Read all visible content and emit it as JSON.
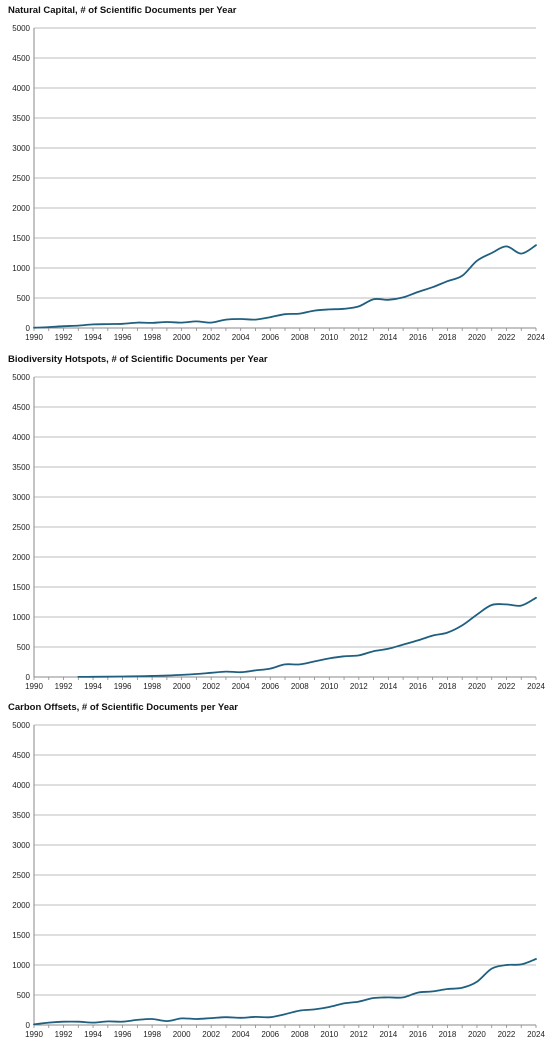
{
  "chart_data": [
    {
      "type": "line",
      "title": "Natural Capital, # of Scientific Documents per Year",
      "xlabel": "",
      "ylabel": "",
      "xlim": [
        1990,
        2024
      ],
      "ylim": [
        0,
        5000
      ],
      "x_ticks": [
        "1990",
        "1992",
        "1994",
        "1996",
        "1998",
        "2000",
        "2002",
        "2004",
        "2006",
        "2008",
        "2010",
        "2012",
        "2014",
        "2016",
        "2018",
        "2020",
        "2022",
        "2024"
      ],
      "y_ticks": [
        "0",
        "500",
        "1000",
        "1500",
        "2000",
        "2500",
        "3000",
        "3500",
        "4000",
        "4500",
        "5000"
      ],
      "grid": true,
      "line_color": "#1f5f7f",
      "series": [
        {
          "x": [
            1990,
            1991,
            1992,
            1993,
            1994,
            1995,
            1996,
            1997,
            1998,
            1999,
            2000,
            2001,
            2002,
            2003,
            2004,
            2005,
            2006,
            2007,
            2008,
            2009,
            2010,
            2011,
            2012,
            2013,
            2014,
            2015,
            2016,
            2017,
            2018,
            2019,
            2020,
            2021,
            2022,
            2023,
            2024
          ],
          "values": [
            5,
            15,
            30,
            40,
            60,
            65,
            70,
            90,
            85,
            100,
            90,
            110,
            90,
            140,
            150,
            140,
            180,
            230,
            240,
            290,
            310,
            320,
            360,
            480,
            470,
            510,
            600,
            680,
            780,
            870,
            1120,
            1250,
            1360,
            1240,
            1380
          ]
        }
      ]
    },
    {
      "type": "line",
      "title": "Biodiversity Hotspots, # of Scientific Documents per Year",
      "xlabel": "",
      "ylabel": "",
      "xlim": [
        1990,
        2024
      ],
      "ylim": [
        0,
        5000
      ],
      "x_ticks": [
        "1990",
        "1992",
        "1994",
        "1996",
        "1998",
        "2000",
        "2002",
        "2004",
        "2006",
        "2008",
        "2010",
        "2012",
        "2014",
        "2016",
        "2018",
        "2020",
        "2022",
        "2024"
      ],
      "y_ticks": [
        "0",
        "500",
        "1000",
        "1500",
        "2000",
        "2500",
        "3000",
        "3500",
        "4000",
        "4500",
        "5000"
      ],
      "grid": true,
      "line_color": "#1f5f7f",
      "series": [
        {
          "x": [
            1993,
            1994,
            1995,
            1996,
            1997,
            1998,
            1999,
            2000,
            2001,
            2002,
            2003,
            2004,
            2005,
            2006,
            2007,
            2008,
            2009,
            2010,
            2011,
            2012,
            2013,
            2014,
            2015,
            2016,
            2017,
            2018,
            2019,
            2020,
            2021,
            2022,
            2023,
            2024
          ],
          "values": [
            2,
            3,
            5,
            8,
            12,
            18,
            25,
            35,
            50,
            70,
            90,
            80,
            110,
            140,
            210,
            210,
            260,
            310,
            345,
            360,
            430,
            470,
            540,
            610,
            690,
            740,
            860,
            1040,
            1200,
            1210,
            1190,
            1320
          ]
        }
      ]
    },
    {
      "type": "line",
      "title": "Carbon Offsets, # of Scientific Documents per Year",
      "xlabel": "",
      "ylabel": "",
      "xlim": [
        1990,
        2024
      ],
      "ylim": [
        0,
        5000
      ],
      "x_ticks": [
        "1990",
        "1992",
        "1994",
        "1996",
        "1998",
        "2000",
        "2002",
        "2004",
        "2006",
        "2008",
        "2010",
        "2012",
        "2014",
        "2016",
        "2018",
        "2020",
        "2022",
        "2024"
      ],
      "y_ticks": [
        "0",
        "500",
        "1000",
        "1500",
        "2000",
        "2500",
        "3000",
        "3500",
        "4000",
        "4500",
        "5000"
      ],
      "grid": true,
      "line_color": "#1f5f7f",
      "series": [
        {
          "x": [
            1990,
            1991,
            1992,
            1993,
            1994,
            1995,
            1996,
            1997,
            1998,
            1999,
            2000,
            2001,
            2002,
            2003,
            2004,
            2005,
            2006,
            2007,
            2008,
            2009,
            2010,
            2011,
            2012,
            2013,
            2014,
            2015,
            2016,
            2017,
            2018,
            2019,
            2020,
            2021,
            2022,
            2023,
            2024
          ],
          "values": [
            10,
            40,
            55,
            55,
            40,
            60,
            55,
            85,
            100,
            65,
            110,
            100,
            115,
            130,
            120,
            135,
            130,
            180,
            240,
            260,
            300,
            360,
            390,
            450,
            460,
            460,
            540,
            560,
            600,
            620,
            720,
            940,
            1000,
            1010,
            1100
          ]
        }
      ]
    }
  ]
}
